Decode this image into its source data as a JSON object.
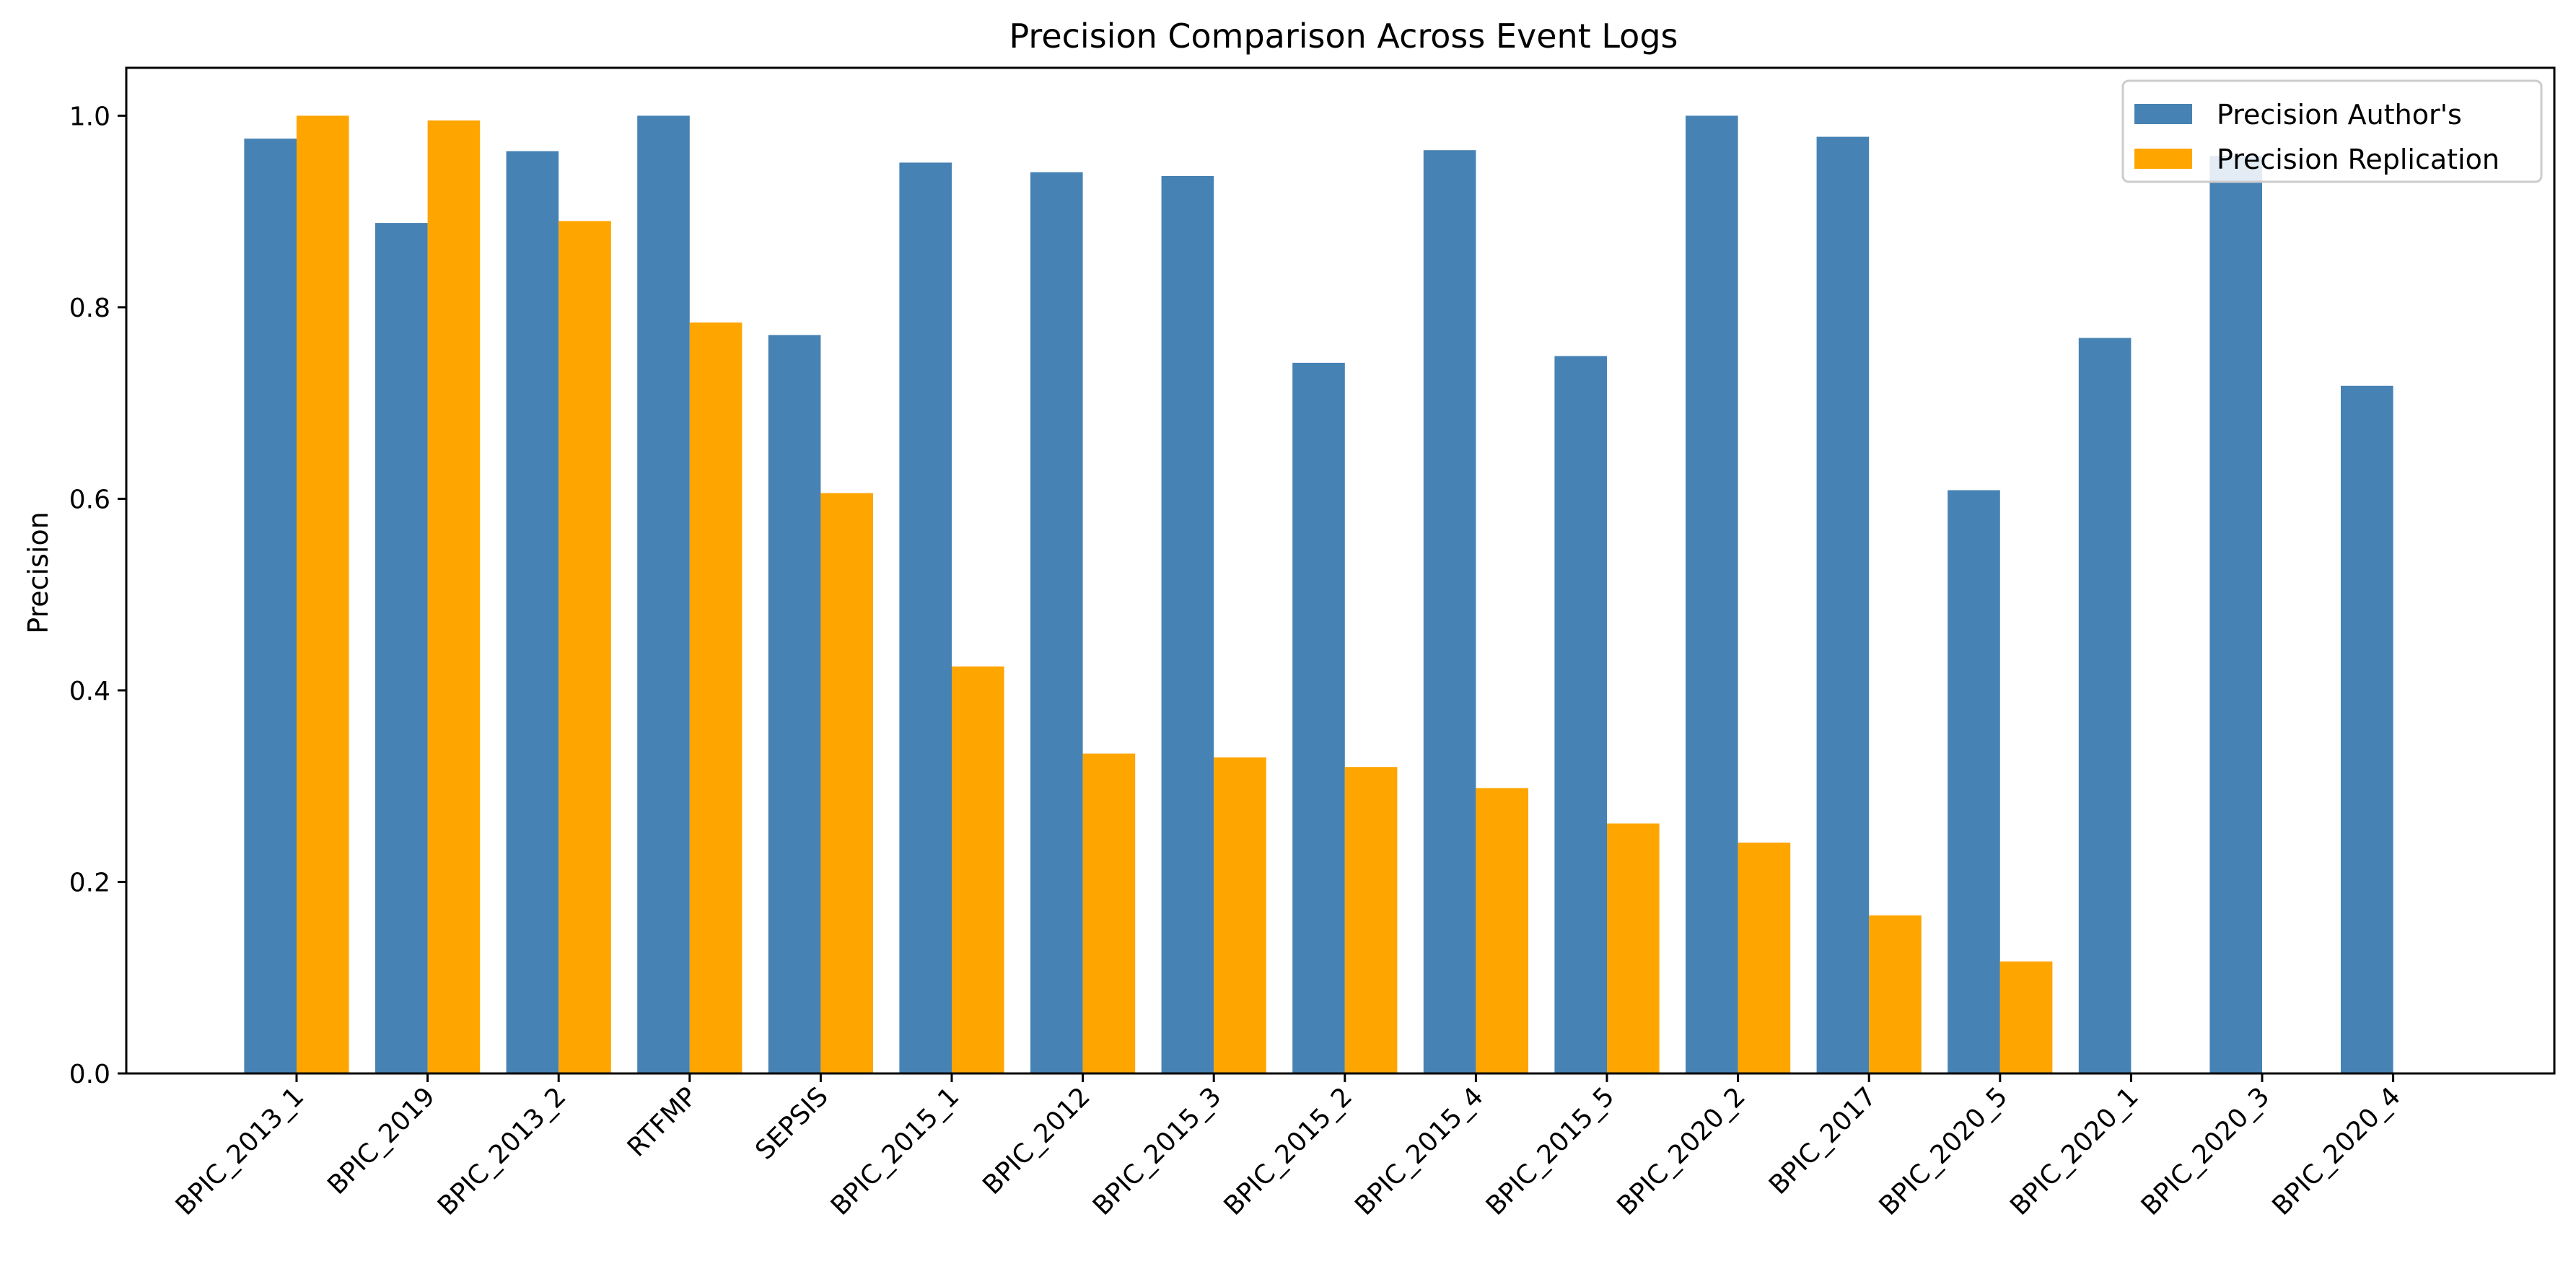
{
  "chart_data": {
    "type": "bar",
    "title": "Precision Comparison Across Event Logs",
    "xlabel": "",
    "ylabel": "Precision",
    "ylim": [
      0,
      1.05
    ],
    "yticks": [
      "0.0",
      "0.2",
      "0.4",
      "0.6",
      "0.8",
      "1.0"
    ],
    "grid": false,
    "legend_position": "top-right",
    "categories": [
      "BPIC_2013_1",
      "BPIC_2019",
      "BPIC_2013_2",
      "RTFMP",
      "SEPSIS",
      "BPIC_2015_1",
      "BPIC_2012",
      "BPIC_2015_3",
      "BPIC_2015_2",
      "BPIC_2015_4",
      "BPIC_2015_5",
      "BPIC_2020_2",
      "BPIC_2017",
      "BPIC_2020_5",
      "BPIC_2020_1",
      "BPIC_2020_3",
      "BPIC_2020_4"
    ],
    "series": [
      {
        "name": "Precision Author's",
        "color": "#4682b4",
        "values": [
          0.976,
          0.888,
          0.963,
          1.0,
          0.771,
          0.951,
          0.941,
          0.937,
          0.742,
          0.964,
          0.749,
          1.0,
          0.978,
          0.609,
          0.768,
          0.958,
          0.718
        ]
      },
      {
        "name": "Precision Replication",
        "color": "#ffa500",
        "values": [
          1.0,
          0.995,
          0.89,
          0.784,
          0.606,
          0.425,
          0.334,
          0.33,
          0.32,
          0.298,
          0.261,
          0.241,
          0.165,
          0.117,
          null,
          null,
          null
        ]
      }
    ]
  }
}
